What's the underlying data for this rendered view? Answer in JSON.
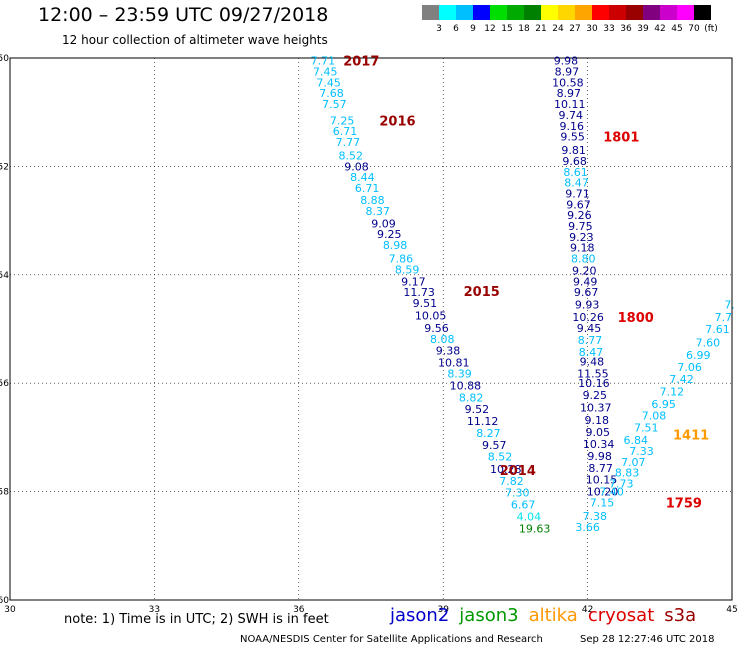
{
  "header": {
    "title": "12:00 – 23:59 UTC 09/27/2018",
    "subtitle": "12 hour collection of altimeter wave heights"
  },
  "scale": {
    "colors": [
      "#808080",
      "#00ffff",
      "#00bfff",
      "#0000ff",
      "#00dd00",
      "#00aa00",
      "#008000",
      "#ffff00",
      "#ffd700",
      "#ffa500",
      "#ff0000",
      "#cc0000",
      "#990000",
      "#800080",
      "#cc00cc",
      "#ff00ff",
      "#000000"
    ],
    "labels": [
      "3",
      "6",
      "9",
      "12",
      "15",
      "18",
      "21",
      "24",
      "27",
      "30",
      "33",
      "36",
      "39",
      "42",
      "45",
      "70",
      "(ft)"
    ]
  },
  "note": "note: 1) Time is in UTC; 2) SWH is in feet",
  "legend": [
    {
      "label": "jason2",
      "color": "#0000cc"
    },
    {
      "label": "jason3",
      "color": "#009900"
    },
    {
      "label": "altika",
      "color": "#ff9900"
    },
    {
      "label": "cryosat",
      "color": "#dd0000"
    },
    {
      "label": "s3a",
      "color": "#990000"
    }
  ],
  "footer": {
    "center": "NOAA/NESDIS Center for Satellite Applications and Research",
    "timestamp": "Sep 28 12:27:46 UTC 2018"
  },
  "chart_data": {
    "type": "scatter",
    "title": "12:00 – 23:59 UTC 09/27/2018",
    "subtitle": "12 hour collection of altimeter wave heights",
    "xlabel": "",
    "ylabel": "",
    "xlim": [
      30,
      45
    ],
    "ylim": [
      -60,
      -50
    ],
    "x_ticks": [
      "30",
      "33",
      "36",
      "39",
      "42",
      "45"
    ],
    "y_ticks": [
      "-50",
      "-52",
      "-54",
      "-56",
      "-58",
      "-60"
    ],
    "grid": "dotted",
    "colors": {
      "dark": "#00008b",
      "light": "#00bfff",
      "cyan": "#00e5ee",
      "green": "#008000"
    },
    "series": [
      {
        "name": "s3a",
        "points": [
          {
            "x": 36.5,
            "y": -50.05,
            "t": "7.71",
            "c": "light"
          },
          {
            "x": 36.55,
            "y": -50.25,
            "t": "7.45",
            "c": "light"
          },
          {
            "x": 36.62,
            "y": -50.45,
            "t": "7.45",
            "c": "light"
          },
          {
            "x": 36.68,
            "y": -50.65,
            "t": "7.68",
            "c": "light"
          },
          {
            "x": 36.74,
            "y": -50.85,
            "t": "7.57",
            "c": "light"
          },
          {
            "x": 36.9,
            "y": -51.15,
            "t": "7.25",
            "c": "light"
          },
          {
            "x": 36.96,
            "y": -51.35,
            "t": "6.71",
            "c": "light"
          },
          {
            "x": 37.02,
            "y": -51.55,
            "t": "7.77",
            "c": "light"
          },
          {
            "x": 37.08,
            "y": -51.8,
            "t": "8.52",
            "c": "light"
          },
          {
            "x": 37.2,
            "y": -52.0,
            "t": "9.08",
            "c": "dark"
          },
          {
            "x": 37.32,
            "y": -52.2,
            "t": "8.44",
            "c": "light"
          },
          {
            "x": 37.42,
            "y": -52.4,
            "t": "6.71",
            "c": "light"
          },
          {
            "x": 37.53,
            "y": -52.62,
            "t": "8.88",
            "c": "light"
          },
          {
            "x": 37.64,
            "y": -52.82,
            "t": "8.37",
            "c": "light"
          },
          {
            "x": 37.76,
            "y": -53.05,
            "t": "9.09",
            "c": "dark"
          },
          {
            "x": 37.88,
            "y": -53.25,
            "t": "9.25",
            "c": "dark"
          },
          {
            "x": 38.0,
            "y": -53.45,
            "t": "8.98",
            "c": "light"
          },
          {
            "x": 38.12,
            "y": -53.7,
            "t": "7.86",
            "c": "light"
          },
          {
            "x": 38.25,
            "y": -53.9,
            "t": "8.59",
            "c": "light"
          },
          {
            "x": 38.38,
            "y": -54.12,
            "t": "9.17",
            "c": "dark"
          },
          {
            "x": 38.5,
            "y": -54.32,
            "t": "11.73",
            "c": "dark"
          },
          {
            "x": 38.62,
            "y": -54.52,
            "t": "9.51",
            "c": "dark"
          },
          {
            "x": 38.74,
            "y": -54.75,
            "t": "10.05",
            "c": "dark"
          },
          {
            "x": 38.86,
            "y": -54.98,
            "t": "9.56",
            "c": "dark"
          },
          {
            "x": 38.98,
            "y": -55.18,
            "t": "8.08",
            "c": "light"
          },
          {
            "x": 39.1,
            "y": -55.4,
            "t": "9.38",
            "c": "dark"
          },
          {
            "x": 39.22,
            "y": -55.62,
            "t": "10.81",
            "c": "dark"
          },
          {
            "x": 39.34,
            "y": -55.82,
            "t": "8.39",
            "c": "light"
          },
          {
            "x": 39.46,
            "y": -56.04,
            "t": "10.88",
            "c": "dark"
          },
          {
            "x": 39.58,
            "y": -56.26,
            "t": "8.82",
            "c": "light"
          },
          {
            "x": 39.7,
            "y": -56.48,
            "t": "9.52",
            "c": "dark"
          },
          {
            "x": 39.82,
            "y": -56.7,
            "t": "11.12",
            "c": "dark"
          },
          {
            "x": 39.94,
            "y": -56.92,
            "t": "8.27",
            "c": "light"
          },
          {
            "x": 40.06,
            "y": -57.14,
            "t": "9.57",
            "c": "dark"
          },
          {
            "x": 40.18,
            "y": -57.35,
            "t": "8.52",
            "c": "light"
          },
          {
            "x": 40.3,
            "y": -57.58,
            "t": "10.28",
            "c": "dark"
          },
          {
            "x": 40.42,
            "y": -57.8,
            "t": "7.82",
            "c": "light"
          },
          {
            "x": 40.54,
            "y": -58.02,
            "t": "7.30",
            "c": "light"
          },
          {
            "x": 40.66,
            "y": -58.24,
            "t": "6.67",
            "c": "light"
          },
          {
            "x": 40.78,
            "y": -58.46,
            "t": "4.04",
            "c": "cyan"
          },
          {
            "x": 40.9,
            "y": -58.68,
            "t": "19.63",
            "c": "green"
          }
        ]
      },
      {
        "name": "cryosat",
        "points": [
          {
            "x": 41.55,
            "y": -50.05,
            "t": "9.98",
            "c": "dark"
          },
          {
            "x": 41.57,
            "y": -50.25,
            "t": "8.97",
            "c": "dark"
          },
          {
            "x": 41.59,
            "y": -50.45,
            "t": "10.58",
            "c": "dark"
          },
          {
            "x": 41.61,
            "y": -50.65,
            "t": "8.97",
            "c": "dark"
          },
          {
            "x": 41.63,
            "y": -50.85,
            "t": "10.11",
            "c": "dark"
          },
          {
            "x": 41.65,
            "y": -51.05,
            "t": "9.74",
            "c": "dark"
          },
          {
            "x": 41.67,
            "y": -51.25,
            "t": "9.16",
            "c": "dark"
          },
          {
            "x": 41.69,
            "y": -51.45,
            "t": "9.55",
            "c": "dark"
          },
          {
            "x": 41.71,
            "y": -51.7,
            "t": "9.81",
            "c": "dark"
          },
          {
            "x": 41.73,
            "y": -51.9,
            "t": "9.68",
            "c": "dark"
          },
          {
            "x": 41.75,
            "y": -52.1,
            "t": "8.61",
            "c": "light"
          },
          {
            "x": 41.77,
            "y": -52.3,
            "t": "8.47",
            "c": "light"
          },
          {
            "x": 41.79,
            "y": -52.5,
            "t": "9.71",
            "c": "dark"
          },
          {
            "x": 41.81,
            "y": -52.7,
            "t": "9.67",
            "c": "dark"
          },
          {
            "x": 41.83,
            "y": -52.9,
            "t": "9.26",
            "c": "dark"
          },
          {
            "x": 41.85,
            "y": -53.1,
            "t": "9.75",
            "c": "dark"
          },
          {
            "x": 41.87,
            "y": -53.3,
            "t": "9.23",
            "c": "dark"
          },
          {
            "x": 41.89,
            "y": -53.5,
            "t": "9.18",
            "c": "dark"
          },
          {
            "x": 41.91,
            "y": -53.7,
            "t": "8.80",
            "c": "light"
          },
          {
            "x": 41.93,
            "y": -53.92,
            "t": "9.20",
            "c": "dark"
          },
          {
            "x": 41.95,
            "y": -54.12,
            "t": "9.49",
            "c": "dark"
          },
          {
            "x": 41.97,
            "y": -54.32,
            "t": "9.67",
            "c": "dark"
          },
          {
            "x": 41.99,
            "y": -54.55,
            "t": "9.93",
            "c": "dark"
          },
          {
            "x": 42.01,
            "y": -54.78,
            "t": "10.26",
            "c": "dark"
          },
          {
            "x": 42.03,
            "y": -54.98,
            "t": "9.45",
            "c": "dark"
          },
          {
            "x": 42.05,
            "y": -55.2,
            "t": "8.77",
            "c": "light"
          },
          {
            "x": 42.07,
            "y": -55.42,
            "t": "8.47",
            "c": "light"
          },
          {
            "x": 42.09,
            "y": -55.6,
            "t": "9.48",
            "c": "dark"
          },
          {
            "x": 42.11,
            "y": -55.82,
            "t": "11.55",
            "c": "dark"
          },
          {
            "x": 42.13,
            "y": -56.0,
            "t": "10.16",
            "c": "dark"
          },
          {
            "x": 42.15,
            "y": -56.22,
            "t": "9.25",
            "c": "dark"
          },
          {
            "x": 42.17,
            "y": -56.45,
            "t": "10.37",
            "c": "dark"
          },
          {
            "x": 42.19,
            "y": -56.68,
            "t": "9.18",
            "c": "dark"
          },
          {
            "x": 42.21,
            "y": -56.9,
            "t": "9.05",
            "c": "dark"
          },
          {
            "x": 42.23,
            "y": -57.12,
            "t": "10.34",
            "c": "dark"
          },
          {
            "x": 42.25,
            "y": -57.34,
            "t": "9.98",
            "c": "dark"
          },
          {
            "x": 42.27,
            "y": -57.56,
            "t": "8.77",
            "c": "dark"
          },
          {
            "x": 42.29,
            "y": -57.78,
            "t": "10.15",
            "c": "dark"
          },
          {
            "x": 42.31,
            "y": -58.0,
            "t": "10.20",
            "c": "dark"
          }
        ]
      },
      {
        "name": "jason2",
        "points": [
          {
            "x": 42.5,
            "y": -58.0,
            "t": "7.40",
            "c": "light"
          },
          {
            "x": 42.3,
            "y": -58.2,
            "t": "7.15",
            "c": "light"
          },
          {
            "x": 42.15,
            "y": -58.45,
            "t": "7.38",
            "c": "light"
          },
          {
            "x": 42.0,
            "y": -58.65,
            "t": "3.66",
            "c": "light"
          },
          {
            "x": 42.7,
            "y": -57.85,
            "t": "7.73",
            "c": "light"
          },
          {
            "x": 42.82,
            "y": -57.65,
            "t": "8.83",
            "c": "light"
          },
          {
            "x": 42.95,
            "y": -57.45,
            "t": "7.07",
            "c": "light"
          },
          {
            "x": 43.12,
            "y": -57.25,
            "t": "7.33",
            "c": "light"
          },
          {
            "x": 43.0,
            "y": -57.05,
            "t": "6.84",
            "c": "light"
          },
          {
            "x": 43.22,
            "y": -56.82,
            "t": "7.51",
            "c": "light"
          },
          {
            "x": 43.38,
            "y": -56.6,
            "t": "7.08",
            "c": "light"
          },
          {
            "x": 43.58,
            "y": -56.38,
            "t": "6.95",
            "c": "light"
          },
          {
            "x": 43.75,
            "y": -56.15,
            "t": "7.12",
            "c": "light"
          },
          {
            "x": 43.95,
            "y": -55.92,
            "t": "7.42",
            "c": "light"
          },
          {
            "x": 44.12,
            "y": -55.7,
            "t": "7.06",
            "c": "light"
          },
          {
            "x": 44.3,
            "y": -55.48,
            "t": "6.99",
            "c": "light"
          },
          {
            "x": 44.5,
            "y": -55.25,
            "t": "7.60",
            "c": "light"
          },
          {
            "x": 44.7,
            "y": -55.0,
            "t": "7.61",
            "c": "light"
          },
          {
            "x": 44.82,
            "y": -54.78,
            "t": "7.7",
            "c": "light"
          },
          {
            "x": 44.95,
            "y": -54.55,
            "t": "7.",
            "c": "light"
          }
        ]
      }
    ],
    "annotations": [
      {
        "x": 37.3,
        "y": -50.05,
        "t": "2017",
        "color": "#990000"
      },
      {
        "x": 38.05,
        "y": -51.15,
        "t": "2016",
        "color": "#990000"
      },
      {
        "x": 39.8,
        "y": -54.3,
        "t": "2015",
        "color": "#990000"
      },
      {
        "x": 40.55,
        "y": -57.6,
        "t": "2014",
        "color": "#990000"
      },
      {
        "x": 42.7,
        "y": -51.45,
        "t": "1801",
        "color": "#dd0000"
      },
      {
        "x": 43.0,
        "y": -54.78,
        "t": "1800",
        "color": "#dd0000"
      },
      {
        "x": 44.15,
        "y": -56.95,
        "t": "1411",
        "color": "#ff9900"
      },
      {
        "x": 44.0,
        "y": -58.2,
        "t": "1759",
        "color": "#dd0000"
      }
    ]
  }
}
